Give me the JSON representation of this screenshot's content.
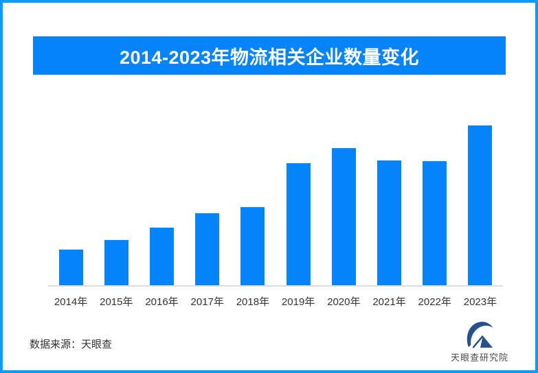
{
  "page": {
    "background": "#ffffff",
    "border_color": "#0a9cf8"
  },
  "header": {
    "title": "2014-2023年物流相关企业数量变化",
    "banner_color": "#0584fc",
    "title_color": "#ffffff"
  },
  "chart_data": {
    "type": "bar",
    "title": "2014-2023年物流相关企业数量变化",
    "categories": [
      "2014年",
      "2015年",
      "2016年",
      "2017年",
      "2018年",
      "2019年",
      "2020年",
      "2021年",
      "2022年",
      "2023年"
    ],
    "values": [
      22.6,
      28.6,
      36.3,
      45.3,
      49.1,
      76.5,
      85.9,
      78.2,
      77.8,
      100
    ],
    "value_basis": "relative bar height, tallest bar (2023年) = 100; chart displays no numeric axis or data labels",
    "xlabel": "",
    "ylabel": "",
    "ylim": [
      0,
      102.6
    ],
    "grid": false,
    "legend": false,
    "bar_color": "#0584fc",
    "axis_line_color": "#dcdcdc",
    "tick_label_color": "#333333"
  },
  "footer": {
    "source_label": "数据来源：天眼查",
    "logo": {
      "text": "天眼查研究院",
      "mark_icon": "tianyancha-eye-swoosh-icon",
      "mark_color": "#27508f",
      "text_color": "#4d4d4d"
    }
  }
}
